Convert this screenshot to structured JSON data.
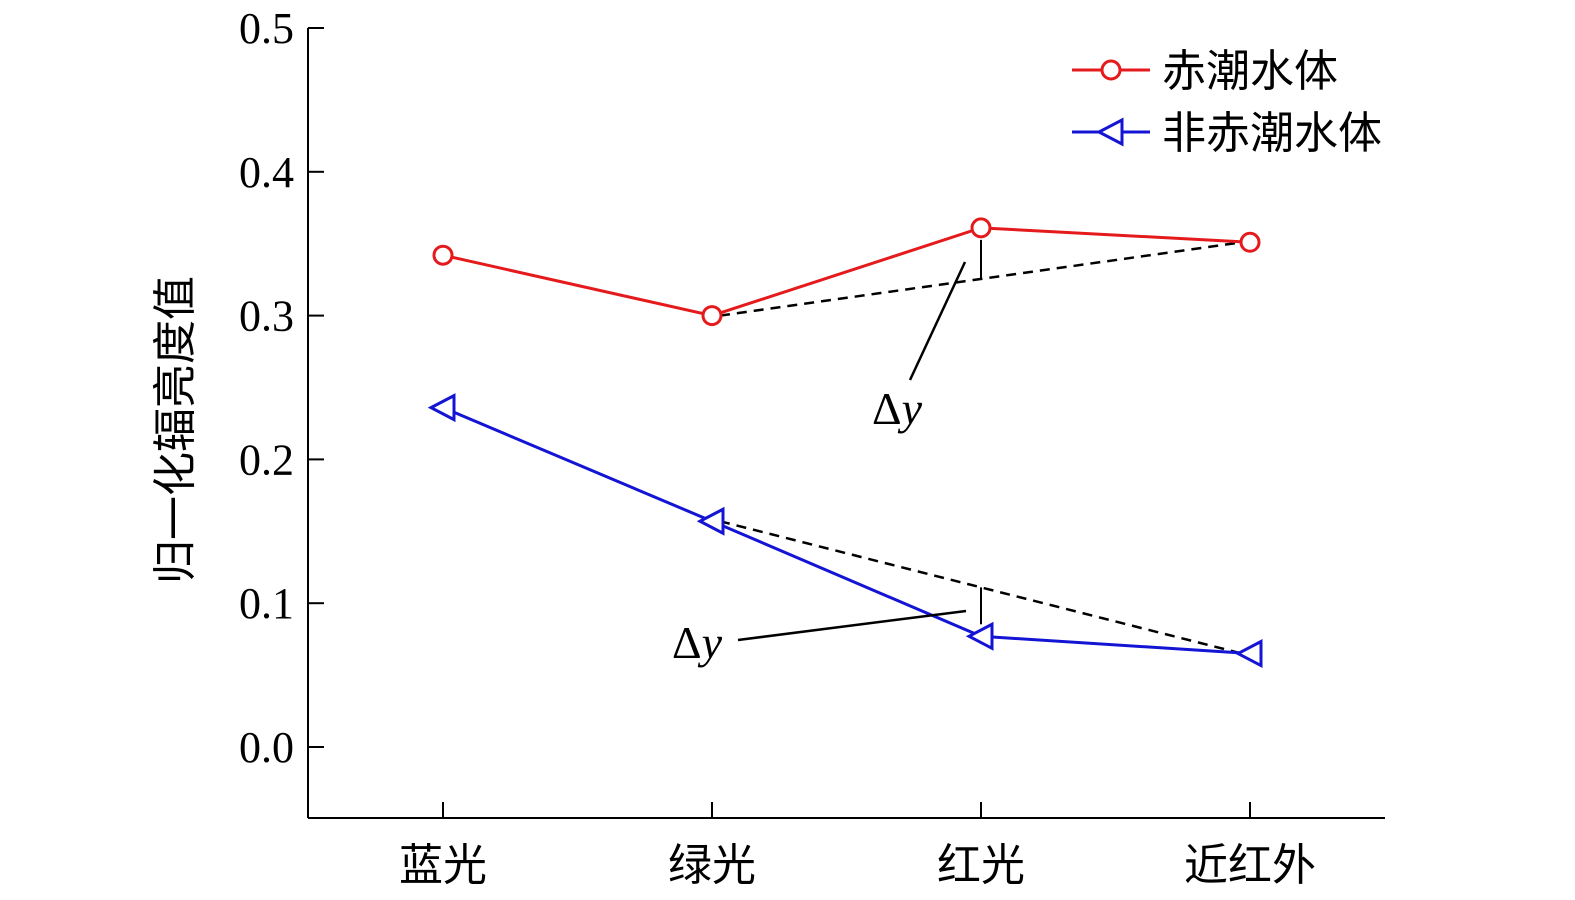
{
  "chart_data": {
    "type": "line",
    "categories": [
      "蓝光",
      "绿光",
      "红光",
      "近红外"
    ],
    "ylabel": "归一化辐亮度值",
    "xlabel": "",
    "ylim": [
      0.0,
      0.5
    ],
    "y_ticks": [
      "0.0",
      "0.1",
      "0.2",
      "0.3",
      "0.4",
      "0.5"
    ],
    "grid": false,
    "legend_position": "top-right",
    "series": [
      {
        "name": "赤潮水体",
        "values": [
          0.342,
          0.3,
          0.361,
          0.351
        ],
        "color": "#e41a1c",
        "marker": "circle"
      },
      {
        "name": "非赤潮水体",
        "values": [
          0.236,
          0.157,
          0.077,
          0.065
        ],
        "color": "#1414d4",
        "marker": "triangle-left"
      }
    ],
    "annotations": [
      {
        "text_delta": "Δ",
        "text_var": "y",
        "series": "赤潮水体",
        "from_category": "绿光",
        "to_category": "近红外",
        "at_category": "红光"
      },
      {
        "text_delta": "Δ",
        "text_var": "y",
        "series": "非赤潮水体",
        "from_category": "绿光",
        "to_category": "近红外",
        "at_category": "红光"
      }
    ]
  }
}
